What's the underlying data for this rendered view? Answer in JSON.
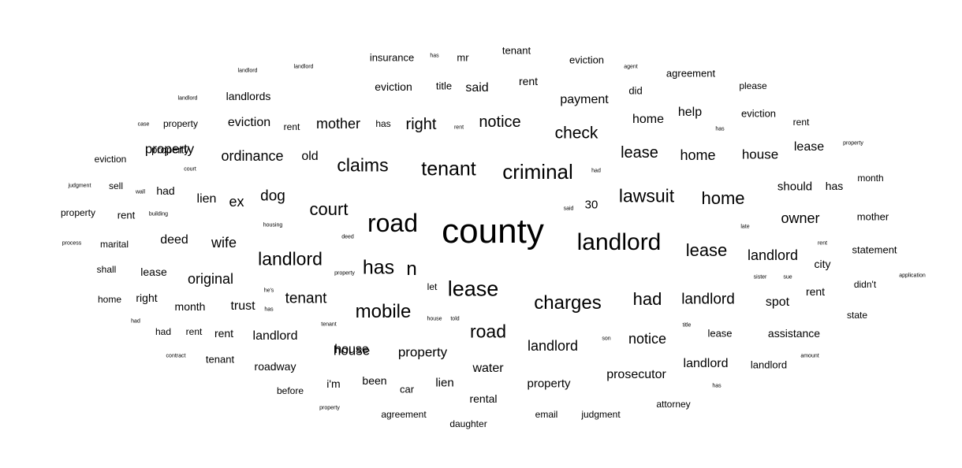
{
  "words": [
    {
      "text": "county",
      "size": 44
    },
    {
      "text": "road",
      "size": 32
    },
    {
      "text": "landlord",
      "size": 30
    },
    {
      "text": "criminal",
      "size": 26
    },
    {
      "text": "tenant",
      "size": 25
    },
    {
      "text": "claims",
      "size": 23
    },
    {
      "text": "lawsuit",
      "size": 23
    },
    {
      "text": "home",
      "size": 22
    },
    {
      "text": "court",
      "size": 22
    },
    {
      "text": "landlord",
      "size": 23
    },
    {
      "text": "has",
      "size": 25
    },
    {
      "text": "n",
      "size": 24
    },
    {
      "text": "lease",
      "size": 27
    },
    {
      "text": "mobile",
      "size": 24
    },
    {
      "text": "charges",
      "size": 24
    },
    {
      "text": "had",
      "size": 22
    },
    {
      "text": "road",
      "size": 23
    },
    {
      "text": "lease",
      "size": 22
    },
    {
      "text": "check",
      "size": 21
    },
    {
      "text": "notice",
      "size": 20
    },
    {
      "text": "right",
      "size": 20
    },
    {
      "text": "lease",
      "size": 20
    },
    {
      "text": "landlord",
      "size": 19
    },
    {
      "text": "ordinance",
      "size": 18
    },
    {
      "text": "mother",
      "size": 18
    },
    {
      "text": "dog",
      "size": 19
    },
    {
      "text": "ex",
      "size": 18
    },
    {
      "text": "tenant",
      "size": 19
    },
    {
      "text": "home",
      "size": 18
    },
    {
      "text": "original",
      "size": 18
    },
    {
      "text": "wife",
      "size": 18
    },
    {
      "text": "landlord",
      "size": 18
    },
    {
      "text": "notice",
      "size": 18
    },
    {
      "text": "landlord",
      "size": 18
    },
    {
      "text": "owner",
      "size": 18
    },
    {
      "text": "property",
      "size": 17
    },
    {
      "text": "house",
      "size": 17
    },
    {
      "text": "property",
      "size": 17
    },
    {
      "text": "deed",
      "size": 16
    },
    {
      "text": "lien",
      "size": 16
    },
    {
      "text": "old",
      "size": 16
    },
    {
      "text": "eviction",
      "size": 16
    },
    {
      "text": "eviction",
      "size": 14
    },
    {
      "text": "said",
      "size": 16
    },
    {
      "text": "payment",
      "size": 16
    },
    {
      "text": "home",
      "size": 16
    },
    {
      "text": "help",
      "size": 16
    },
    {
      "text": "house",
      "size": 17
    },
    {
      "text": "spot",
      "size": 16
    },
    {
      "text": "lease",
      "size": 16
    },
    {
      "text": "trust",
      "size": 16
    },
    {
      "text": "landlord",
      "size": 16
    },
    {
      "text": "water",
      "size": 16
    },
    {
      "text": "prosecutor",
      "size": 16
    },
    {
      "text": "landlord",
      "size": 16
    },
    {
      "text": "should",
      "size": 15
    },
    {
      "text": "has",
      "size": 14
    },
    {
      "text": "landlords",
      "size": 14
    },
    {
      "text": "insurance",
      "size": 13
    },
    {
      "text": "mr",
      "size": 13
    },
    {
      "text": "tenant",
      "size": 13
    },
    {
      "text": "eviction",
      "size": 13
    },
    {
      "text": "agreement",
      "size": 13
    },
    {
      "text": "rent",
      "size": 14
    },
    {
      "text": "title",
      "size": 13
    },
    {
      "text": "did",
      "size": 13
    },
    {
      "text": "please",
      "size": 12
    },
    {
      "text": "eviction",
      "size": 13
    },
    {
      "text": "property",
      "size": 12
    },
    {
      "text": "rent",
      "size": 12
    },
    {
      "text": "has",
      "size": 12
    },
    {
      "text": "rent",
      "size": 12
    },
    {
      "text": "lease",
      "size": 13
    },
    {
      "text": "property",
      "size": 13
    },
    {
      "text": "eviction",
      "size": 12
    },
    {
      "text": "had",
      "size": 14
    },
    {
      "text": "sell",
      "size": 12
    },
    {
      "text": "rent",
      "size": 13
    },
    {
      "text": "property",
      "size": 12
    },
    {
      "text": "30",
      "size": 15
    },
    {
      "text": "month",
      "size": 12
    },
    {
      "text": "mother",
      "size": 13
    },
    {
      "text": "marital",
      "size": 12
    },
    {
      "text": "statement",
      "size": 13
    },
    {
      "text": "city",
      "size": 14
    },
    {
      "text": "shall",
      "size": 12
    },
    {
      "text": "lease",
      "size": 14
    },
    {
      "text": "didn't",
      "size": 12
    },
    {
      "text": "home",
      "size": 12
    },
    {
      "text": "right",
      "size": 14
    },
    {
      "text": "month",
      "size": 14
    },
    {
      "text": "rent",
      "size": 14
    },
    {
      "text": "state",
      "size": 12
    },
    {
      "text": "had",
      "size": 12
    },
    {
      "text": "rent",
      "size": 12
    },
    {
      "text": "rent",
      "size": 14
    },
    {
      "text": "assistance",
      "size": 14
    },
    {
      "text": "house",
      "size": 16
    },
    {
      "text": "tenant",
      "size": 13
    },
    {
      "text": "roadway",
      "size": 14
    },
    {
      "text": "landlord",
      "size": 13
    },
    {
      "text": "i'm",
      "size": 14
    },
    {
      "text": "been",
      "size": 14
    },
    {
      "text": "lien",
      "size": 15
    },
    {
      "text": "property",
      "size": 15
    },
    {
      "text": "before",
      "size": 12
    },
    {
      "text": "car",
      "size": 13
    },
    {
      "text": "rental",
      "size": 14
    },
    {
      "text": "attorney",
      "size": 12
    },
    {
      "text": "agreement",
      "size": 12
    },
    {
      "text": "email",
      "size": 12
    },
    {
      "text": "judgment",
      "size": 12
    },
    {
      "text": "daughter",
      "size": 12
    },
    {
      "text": "landlord",
      "size": 7
    },
    {
      "text": "landlord",
      "size": 7
    },
    {
      "text": "has",
      "size": 7
    },
    {
      "text": "agent",
      "size": 7
    },
    {
      "text": "landlord",
      "size": 7
    },
    {
      "text": "case",
      "size": 7
    },
    {
      "text": "rent",
      "size": 7
    },
    {
      "text": "has",
      "size": 7
    },
    {
      "text": "property",
      "size": 7
    },
    {
      "text": "court",
      "size": 7
    },
    {
      "text": "had",
      "size": 7
    },
    {
      "text": "judgment",
      "size": 7
    },
    {
      "text": "wall",
      "size": 7
    },
    {
      "text": "building",
      "size": 7
    },
    {
      "text": "said",
      "size": 7
    },
    {
      "text": "housing",
      "size": 7
    },
    {
      "text": "late",
      "size": 7
    },
    {
      "text": "process",
      "size": 7
    },
    {
      "text": "deed",
      "size": 7
    },
    {
      "text": "property",
      "size": 7
    },
    {
      "text": "rent",
      "size": 7
    },
    {
      "text": "sister",
      "size": 7
    },
    {
      "text": "sue",
      "size": 7
    },
    {
      "text": "application",
      "size": 7
    },
    {
      "text": "he's",
      "size": 7
    },
    {
      "text": "has",
      "size": 7
    },
    {
      "text": "let",
      "size": 12
    },
    {
      "text": "house",
      "size": 7
    },
    {
      "text": "told",
      "size": 7
    },
    {
      "text": "had",
      "size": 7
    },
    {
      "text": "tenant",
      "size": 7
    },
    {
      "text": "title",
      "size": 7
    },
    {
      "text": "son",
      "size": 7
    },
    {
      "text": "contract",
      "size": 7
    },
    {
      "text": "amount",
      "size": 7
    },
    {
      "text": "has",
      "size": 7
    },
    {
      "text": "property",
      "size": 7
    }
  ]
}
